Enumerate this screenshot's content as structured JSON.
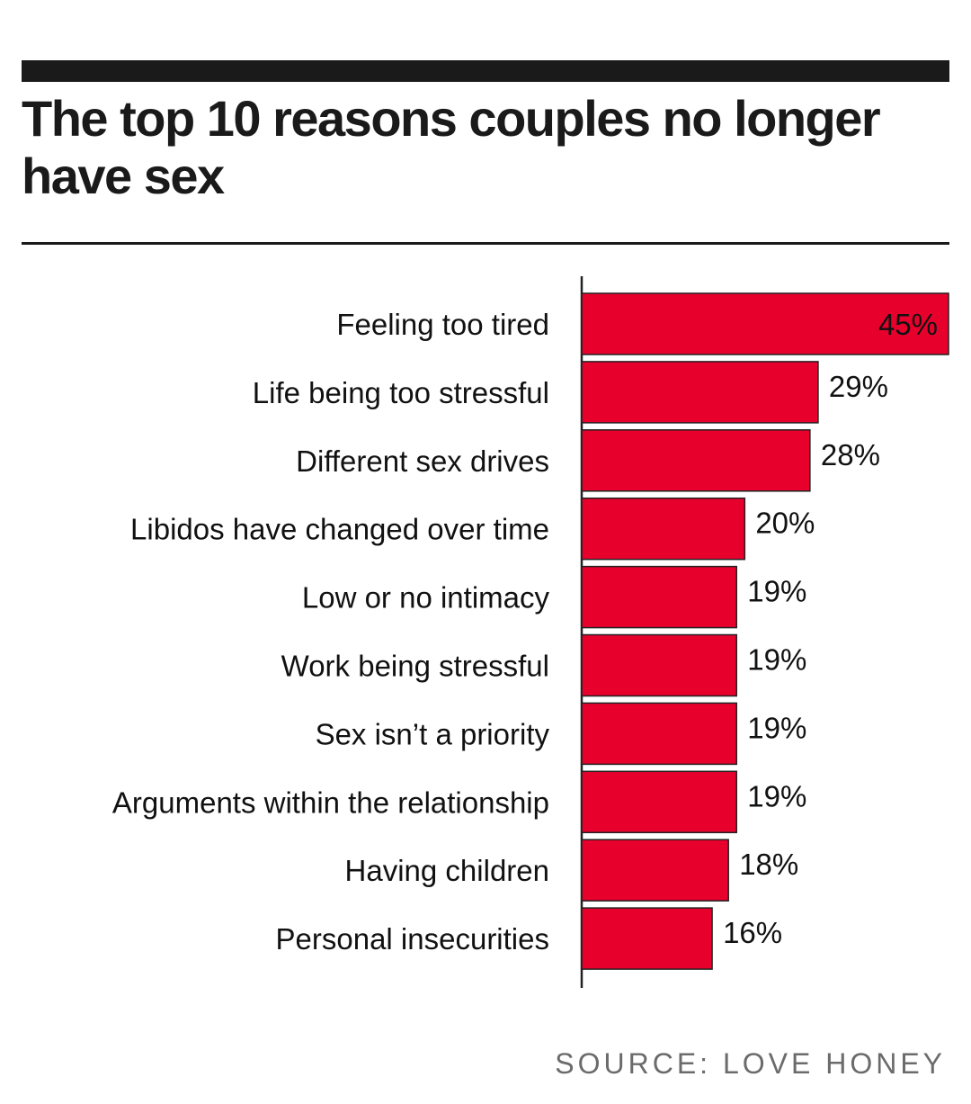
{
  "header": {
    "title": "The top 10 reasons couples no longer have sex"
  },
  "chart_data": {
    "type": "bar",
    "orientation": "horizontal",
    "title": "The top 10 reasons couples no longer have sex",
    "categories": [
      "Feeling too tired",
      "Life being too stressful",
      "Different sex drives",
      "Libidos have changed over time",
      "Low or no intimacy",
      "Work being stressful",
      "Sex isn’t a priority",
      "Arguments within the relationship",
      "Having children",
      "Personal insecurities"
    ],
    "values": [
      45,
      29,
      28,
      20,
      19,
      19,
      19,
      19,
      18,
      16
    ],
    "value_labels": [
      "45%",
      "29%",
      "28%",
      "20%",
      "19%",
      "19%",
      "19%",
      "19%",
      "18%",
      "16%"
    ],
    "xlim": [
      0,
      45
    ],
    "grid": false,
    "legend": "none",
    "bar_color": "#e8002d",
    "bar_edge_color": "#222222",
    "highlight_label_color": "#ffffff"
  },
  "footer": {
    "source": "SOURCE: LOVE HONEY"
  }
}
